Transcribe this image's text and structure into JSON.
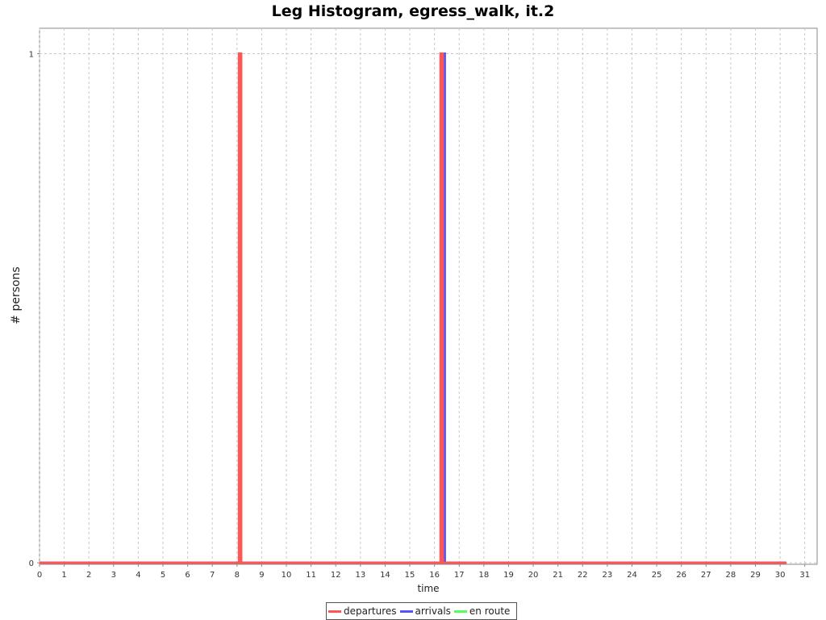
{
  "chart_data": {
    "type": "line",
    "title": "Leg Histogram, egress_walk, it.2",
    "xlabel": "time",
    "ylabel": "# persons",
    "xlim": [
      0,
      31.5
    ],
    "ylim": [
      -0.003,
      1.05
    ],
    "x_ticks": [
      "0",
      "1",
      "2",
      "3",
      "4",
      "5",
      "6",
      "7",
      "8",
      "9",
      "10",
      "11",
      "12",
      "13",
      "14",
      "15",
      "16",
      "17",
      "18",
      "19",
      "20",
      "21",
      "22",
      "23",
      "24",
      "25",
      "26",
      "27",
      "28",
      "29",
      "30",
      "31"
    ],
    "y_ticks": [
      "0",
      "1"
    ],
    "grid": true,
    "legend_position": "bottom",
    "series": [
      {
        "name": "en route",
        "color": "#55ff55",
        "points": [
          [
            0,
            0
          ],
          [
            30.25,
            0
          ]
        ]
      },
      {
        "name": "arrivals",
        "color": "#5555ff",
        "points": [
          [
            0,
            0
          ],
          [
            16.333,
            0
          ],
          [
            16.333,
            1
          ],
          [
            16.417,
            1
          ],
          [
            16.417,
            0
          ],
          [
            30.25,
            0
          ]
        ]
      },
      {
        "name": "departures",
        "color": "#ff5555",
        "points": [
          [
            0,
            0
          ],
          [
            8.083,
            0
          ],
          [
            8.083,
            1
          ],
          [
            8.167,
            1
          ],
          [
            8.167,
            0
          ],
          [
            16.25,
            0
          ],
          [
            16.25,
            1
          ],
          [
            16.333,
            1
          ],
          [
            16.333,
            0
          ],
          [
            30.25,
            0
          ]
        ]
      }
    ],
    "legend": [
      {
        "name": "departures",
        "color": "#ff5555"
      },
      {
        "name": "arrivals",
        "color": "#5555ff"
      },
      {
        "name": "en route",
        "color": "#55ff55"
      }
    ]
  }
}
